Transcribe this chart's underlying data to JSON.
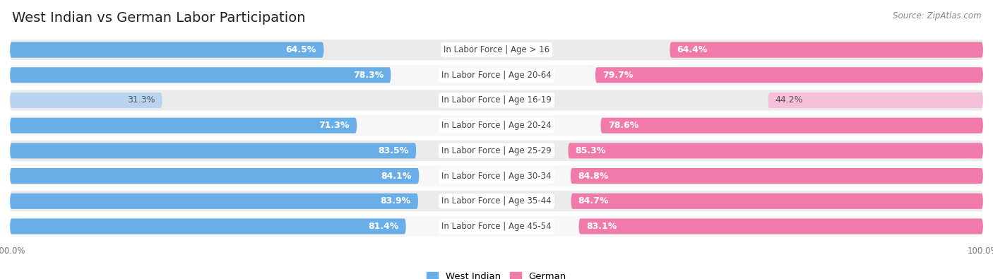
{
  "title": "West Indian vs German Labor Participation",
  "source": "Source: ZipAtlas.com",
  "categories": [
    "In Labor Force | Age > 16",
    "In Labor Force | Age 20-64",
    "In Labor Force | Age 16-19",
    "In Labor Force | Age 20-24",
    "In Labor Force | Age 25-29",
    "In Labor Force | Age 30-34",
    "In Labor Force | Age 35-44",
    "In Labor Force | Age 45-54"
  ],
  "west_indian": [
    64.5,
    78.3,
    31.3,
    71.3,
    83.5,
    84.1,
    83.9,
    81.4
  ],
  "german": [
    64.4,
    79.7,
    44.2,
    78.6,
    85.3,
    84.8,
    84.7,
    83.1
  ],
  "west_indian_color": "#6aaee8",
  "west_indian_light_color": "#b8d4f0",
  "german_color": "#f07aaa",
  "german_light_color": "#f5c0d8",
  "row_bg_color_odd": "#ebebeb",
  "row_bg_color_even": "#f7f7f7",
  "legend_wi": "West Indian",
  "legend_de": "German",
  "x_max": 100.0,
  "bar_height": 0.62,
  "title_fontsize": 14,
  "label_fontsize": 9,
  "tick_fontsize": 8.5,
  "cat_fontsize": 8.5,
  "low_threshold": 50
}
